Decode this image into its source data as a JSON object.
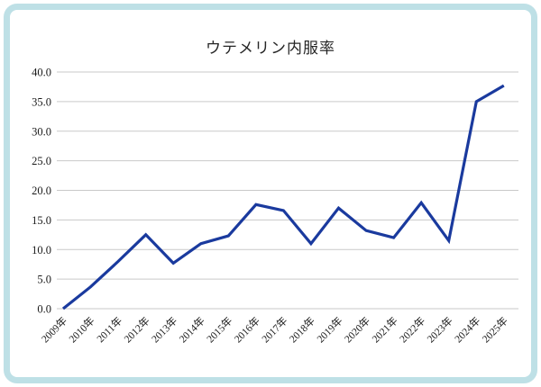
{
  "title": "ウテメリン内服率",
  "chart_data": {
    "type": "line",
    "title": "ウテメリン内服率",
    "categories": [
      "2009年",
      "2010年",
      "2011年",
      "2012年",
      "2013年",
      "2014年",
      "2015年",
      "2016年",
      "2017年",
      "2018年",
      "2019年",
      "2020年",
      "2021年",
      "2022年",
      "2023年",
      "2024年",
      "2025年"
    ],
    "values": [
      0.0,
      3.7,
      8.0,
      12.5,
      7.7,
      11.0,
      12.3,
      17.6,
      16.6,
      11.0,
      17.0,
      13.2,
      12.0,
      17.9,
      11.5,
      35.0,
      37.7
    ],
    "series_name": "ウテメリン内服率",
    "xlabel": "",
    "ylabel": "",
    "ylim": [
      0,
      40
    ],
    "y_ticks": [
      0,
      5,
      10,
      15,
      20,
      25,
      30,
      35,
      40
    ],
    "y_tick_labels": [
      "0.0",
      "5.0",
      "10.0",
      "15.0",
      "20.0",
      "25.0",
      "30.0",
      "35.0",
      "40.0"
    ],
    "grid": true,
    "legend_position": "none",
    "line_color": "#1a3a9e",
    "gridline_color": "#c9c9c9",
    "text_color": "#1a1a1a",
    "frame_border_color": "#bee0e6",
    "background_color": "#ffffff"
  }
}
